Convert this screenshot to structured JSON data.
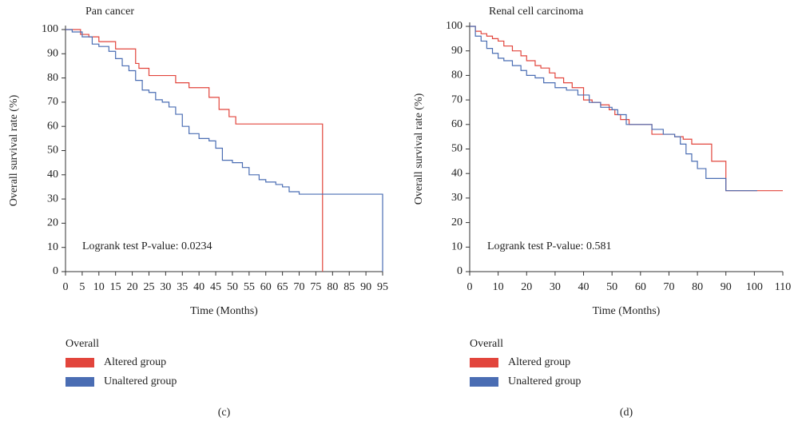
{
  "chart_data": [
    {
      "type": "step",
      "title": "Pan cancer",
      "x_label": "Time (Months)",
      "y_label": "Overall survival rate (%)",
      "annotation": "Logrank test P-value: 0.0234",
      "legend_title": "Overall",
      "caption": "(c)",
      "xlim": [
        0,
        95
      ],
      "ylim": [
        0,
        100
      ],
      "xticks": [
        0,
        5,
        10,
        15,
        20,
        25,
        30,
        35,
        40,
        45,
        50,
        55,
        60,
        65,
        70,
        75,
        80,
        85,
        90,
        95
      ],
      "yticks": [
        0,
        10,
        20,
        30,
        40,
        50,
        60,
        70,
        80,
        90,
        100
      ],
      "series": [
        {
          "name": "Altered group",
          "color": "#e2453c",
          "x": [
            0,
            4.5,
            7,
            10,
            15,
            21,
            22,
            25,
            33,
            37,
            43,
            46,
            49,
            51,
            77
          ],
          "values": [
            100,
            98,
            97,
            95,
            92,
            86,
            84,
            81,
            78,
            76,
            72,
            67,
            64,
            61,
            0
          ]
        },
        {
          "name": "Unaltered group",
          "color": "#4a6db3",
          "x": [
            0,
            2,
            5,
            8,
            10,
            13,
            15,
            17,
            19,
            21,
            23,
            25,
            27,
            29,
            31,
            33,
            35,
            37,
            40,
            43,
            45,
            47,
            50,
            53,
            55,
            58,
            60,
            63,
            65,
            67,
            70,
            95
          ],
          "values": [
            100,
            99,
            97,
            94,
            93,
            91,
            88,
            85,
            83,
            79,
            75,
            74,
            71,
            70,
            68,
            65,
            60,
            57,
            55,
            54,
            51,
            46,
            45,
            43,
            40,
            38,
            37,
            36,
            35,
            33,
            32,
            0
          ]
        }
      ]
    },
    {
      "type": "step",
      "title": "Renal cell carcinoma",
      "x_label": "Time (Months)",
      "y_label": "Overall survival rate (%)",
      "annotation": "Logrank test P-value: 0.581",
      "legend_title": "Overall",
      "caption": "(d)",
      "xlim": [
        0,
        110
      ],
      "ylim": [
        0,
        100
      ],
      "xticks": [
        0,
        10,
        20,
        30,
        40,
        50,
        60,
        70,
        80,
        90,
        100,
        110
      ],
      "yticks": [
        0,
        10,
        20,
        30,
        40,
        50,
        60,
        70,
        80,
        90,
        100
      ],
      "series": [
        {
          "name": "Altered group",
          "color": "#e2453c",
          "x": [
            0,
            2,
            4,
            6,
            8,
            10,
            12,
            15,
            18,
            20,
            23,
            25,
            28,
            30,
            33,
            36,
            40,
            43,
            46,
            49,
            51,
            53,
            56,
            60,
            64,
            68,
            72,
            75,
            78,
            85,
            90,
            110
          ],
          "values": [
            100,
            98,
            97,
            96,
            95,
            94,
            92,
            90,
            88,
            86,
            84,
            83,
            81,
            79,
            77,
            75,
            70,
            69,
            68,
            66,
            64,
            62,
            60,
            60,
            56,
            56,
            55,
            54,
            52,
            45,
            33,
            33
          ]
        },
        {
          "name": "Unaltered group",
          "color": "#4a6db3",
          "x": [
            0,
            2,
            4,
            6,
            8,
            10,
            12,
            15,
            18,
            20,
            23,
            26,
            30,
            34,
            38,
            42,
            46,
            50,
            52,
            55,
            60,
            64,
            68,
            72,
            74,
            76,
            78,
            80,
            83,
            86,
            88,
            90,
            101
          ],
          "values": [
            100,
            96,
            94,
            91,
            89,
            87,
            86,
            84,
            82,
            80,
            79,
            77,
            75,
            74,
            72,
            69,
            67,
            66,
            64,
            60,
            60,
            58,
            56,
            55,
            52,
            48,
            45,
            42,
            38,
            38,
            38,
            33,
            33
          ]
        }
      ]
    }
  ]
}
